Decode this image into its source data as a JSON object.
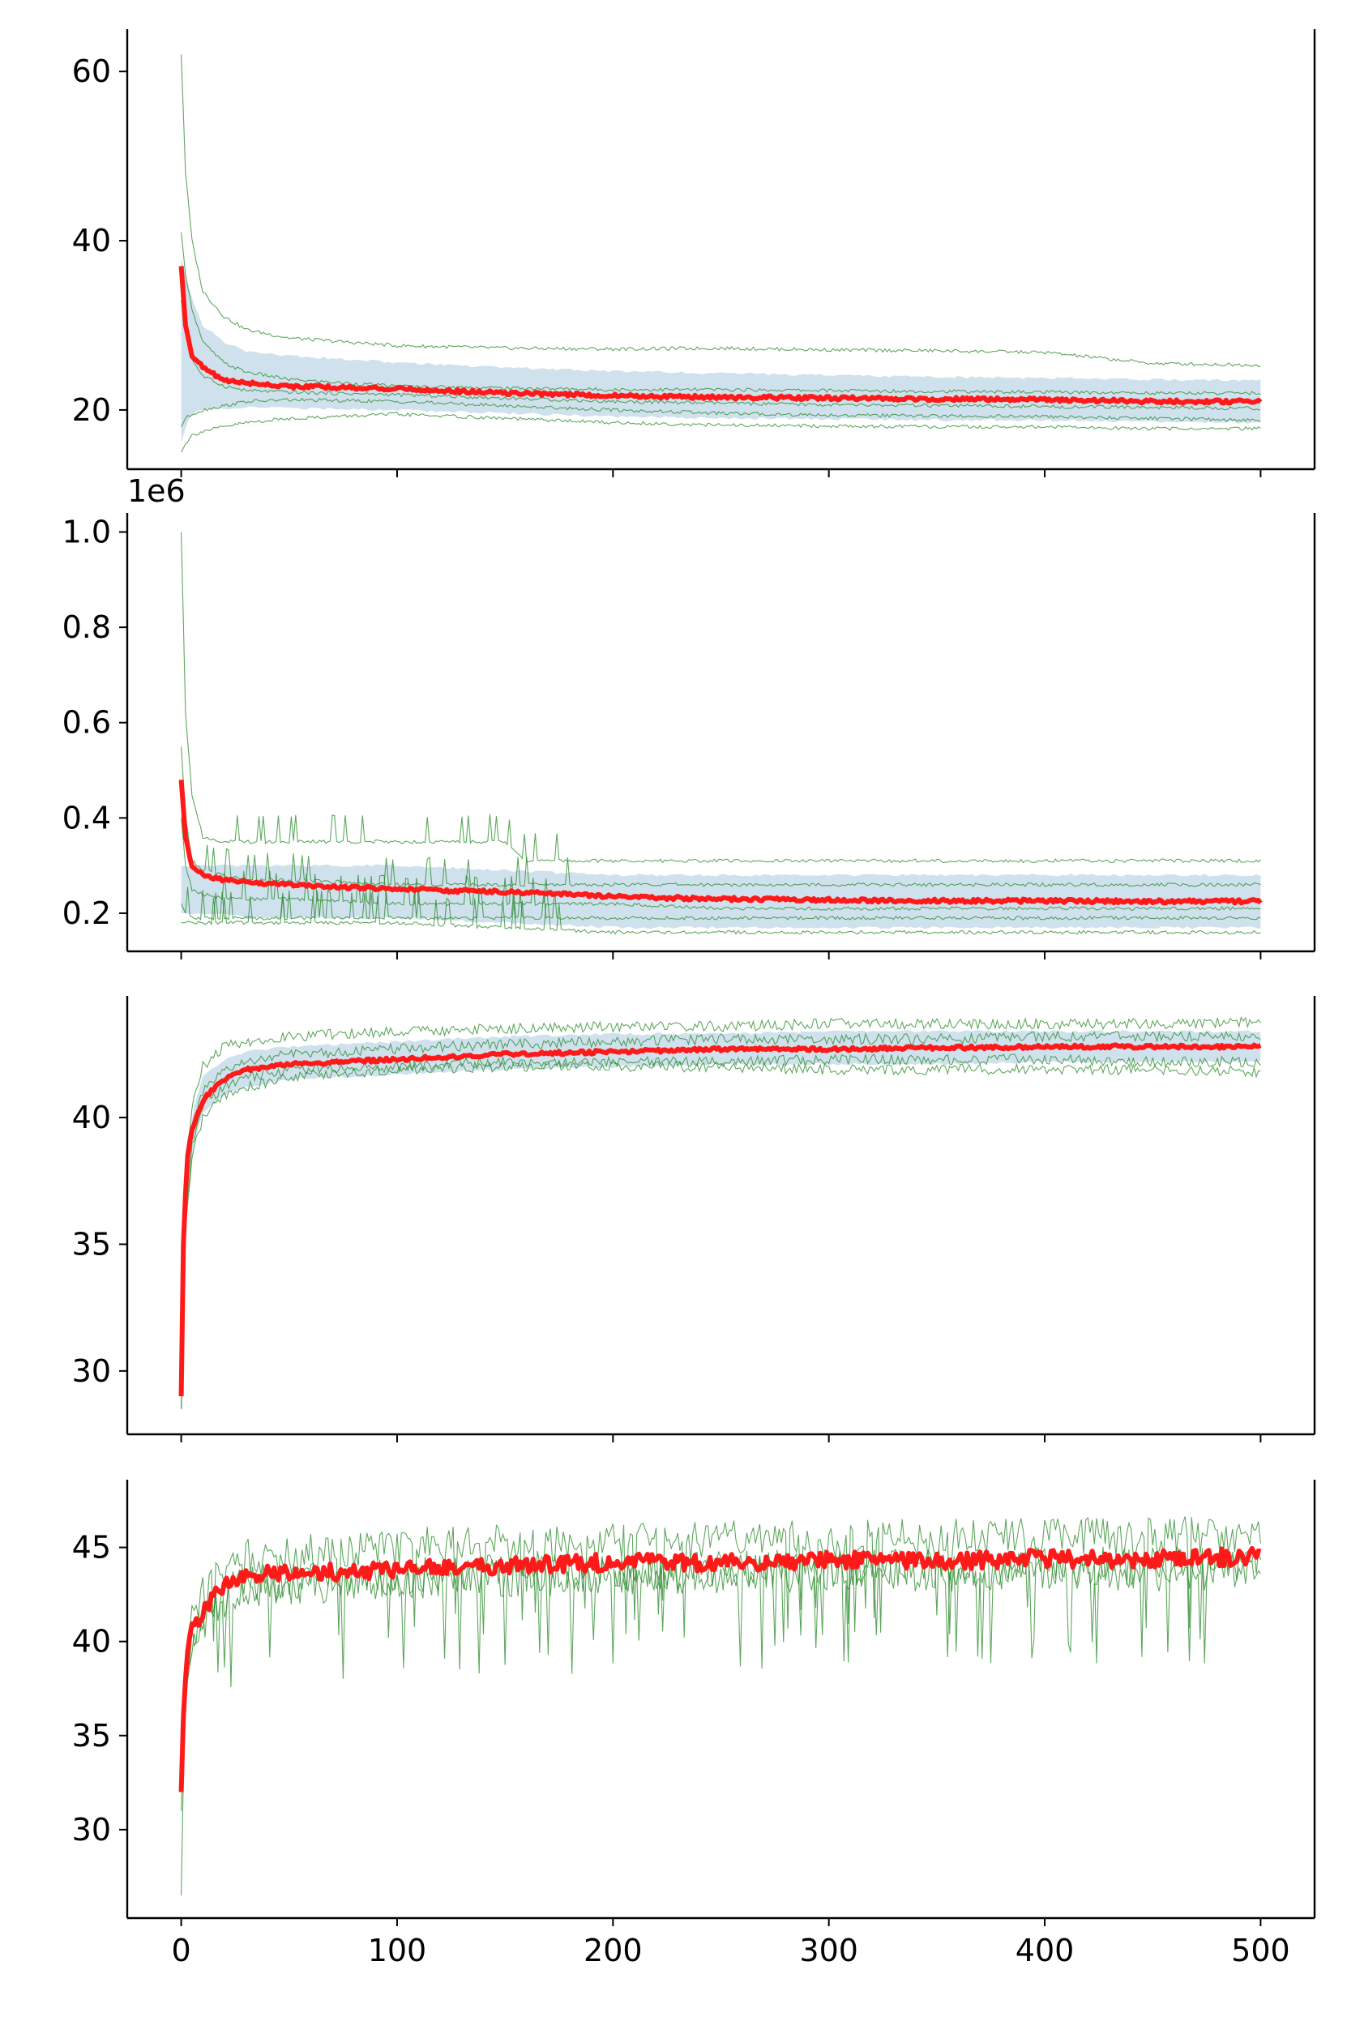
{
  "chart_data": [
    {
      "type": "line",
      "x_ticks": [
        0,
        100,
        200,
        300,
        400,
        500
      ],
      "y_ticks": [
        20,
        40,
        60
      ],
      "ylim": [
        13,
        65
      ],
      "xlim": [
        -25,
        525
      ],
      "grid": false,
      "series": [
        {
          "role": "mean",
          "color": "#ff1a1a",
          "x": [
            0,
            2,
            5,
            10,
            20,
            30,
            50,
            100,
            150,
            200,
            250,
            300,
            350,
            400,
            450,
            500
          ],
          "values": [
            37,
            30,
            26.5,
            25,
            23.5,
            23.2,
            22.8,
            22.5,
            22.0,
            21.7,
            21.5,
            21.4,
            21.3,
            21.2,
            21.0,
            21.0
          ]
        },
        {
          "role": "std_band",
          "color": "#a9c8e0",
          "x": [
            0,
            2,
            5,
            10,
            20,
            30,
            50,
            100,
            150,
            200,
            250,
            300,
            350,
            400,
            450,
            500
          ],
          "upper": [
            38,
            36,
            33,
            30,
            28,
            27,
            26.4,
            25.6,
            25,
            24.6,
            24.3,
            24.1,
            23.9,
            23.8,
            23.6,
            23.5
          ],
          "lower": [
            16,
            18,
            19.5,
            20,
            20.2,
            20.3,
            20.2,
            20.0,
            19.6,
            19.2,
            19.0,
            18.9,
            18.8,
            18.8,
            18.6,
            18.5
          ]
        },
        {
          "role": "run",
          "color": "#2a8a2a",
          "x": [
            0,
            2,
            5,
            10,
            20,
            30,
            50,
            100,
            150,
            200,
            250,
            300,
            350,
            400,
            450,
            500
          ],
          "values": [
            62,
            48,
            40,
            34,
            31,
            29.5,
            28.5,
            27.6,
            27.3,
            27.2,
            27.3,
            27.1,
            27.0,
            26.8,
            25.5,
            25.3
          ]
        },
        {
          "role": "run",
          "color": "#2a8a2a",
          "x": [
            0,
            2,
            5,
            10,
            20,
            30,
            50,
            100,
            150,
            200,
            250,
            300,
            350,
            400,
            450,
            500
          ],
          "values": [
            41,
            36,
            32,
            28,
            25.5,
            24.5,
            23.6,
            22.8,
            22.6,
            22.4,
            22.4,
            22.3,
            22.2,
            22.1,
            22.0,
            22.0
          ]
        },
        {
          "role": "run",
          "color": "#2a8a2a",
          "x": [
            0,
            2,
            5,
            10,
            20,
            30,
            50,
            100,
            150,
            200,
            250,
            300,
            350,
            400,
            450,
            500
          ],
          "values": [
            33,
            29,
            26,
            24,
            22.8,
            22.3,
            22.1,
            21.8,
            21.4,
            21.0,
            20.8,
            20.6,
            20.5,
            20.4,
            20.3,
            20.2
          ]
        },
        {
          "role": "run",
          "color": "#2a8a2a",
          "x": [
            0,
            2,
            5,
            10,
            20,
            30,
            50,
            100,
            150,
            200,
            250,
            300,
            350,
            400,
            450,
            500
          ],
          "values": [
            18,
            19,
            19.5,
            20,
            20.5,
            21,
            21.2,
            21.0,
            20.5,
            20.0,
            19.6,
            19.4,
            19.3,
            19.2,
            19.0,
            18.8
          ]
        },
        {
          "role": "run",
          "color": "#2a8a2a",
          "x": [
            0,
            2,
            5,
            10,
            20,
            30,
            50,
            100,
            150,
            200,
            250,
            300,
            350,
            400,
            450,
            500
          ],
          "values": [
            15,
            16,
            17,
            17.5,
            18,
            18.5,
            19,
            19.5,
            19.0,
            18.5,
            18.2,
            18.1,
            18.0,
            18.0,
            17.8,
            17.8
          ]
        }
      ]
    },
    {
      "type": "line",
      "x_ticks": [
        0,
        100,
        200,
        300,
        400,
        500
      ],
      "y_ticks": [
        0.2,
        0.4,
        0.6,
        0.8,
        1.0
      ],
      "y_tick_labels": [
        "0.2",
        "0.4",
        "0.6",
        "0.8",
        "1.0"
      ],
      "y_offset_label": "1e6",
      "ylim": [
        0.12,
        1.04
      ],
      "xlim": [
        -25,
        525
      ],
      "grid": false,
      "series": [
        {
          "role": "mean",
          "color": "#ff1a1a",
          "x": [
            0,
            2,
            5,
            10,
            20,
            30,
            50,
            100,
            150,
            200,
            250,
            300,
            350,
            400,
            450,
            500
          ],
          "values": [
            0.48,
            0.36,
            0.3,
            0.28,
            0.27,
            0.265,
            0.26,
            0.25,
            0.245,
            0.235,
            0.23,
            0.228,
            0.226,
            0.226,
            0.225,
            0.225
          ]
        },
        {
          "role": "std_band",
          "color": "#a9c8e0",
          "x": [
            0,
            2,
            5,
            10,
            20,
            30,
            50,
            100,
            150,
            200,
            250,
            300,
            350,
            400,
            450,
            500
          ],
          "upper": [
            0.3,
            0.3,
            0.3,
            0.3,
            0.3,
            0.3,
            0.3,
            0.3,
            0.29,
            0.28,
            0.28,
            0.28,
            0.28,
            0.28,
            0.28,
            0.28
          ],
          "lower": [
            0.2,
            0.2,
            0.2,
            0.2,
            0.2,
            0.19,
            0.19,
            0.19,
            0.18,
            0.17,
            0.17,
            0.17,
            0.17,
            0.17,
            0.17,
            0.17
          ]
        },
        {
          "role": "run",
          "color": "#2a8a2a",
          "x": [
            0,
            2,
            5,
            10,
            20,
            30,
            50,
            100,
            150,
            160,
            170,
            180,
            250,
            300,
            400,
            500
          ],
          "values": [
            1.0,
            0.62,
            0.45,
            0.36,
            0.35,
            0.35,
            0.35,
            0.35,
            0.35,
            0.31,
            0.31,
            0.31,
            0.31,
            0.31,
            0.31,
            0.31
          ]
        },
        {
          "role": "run",
          "color": "#2a8a2a",
          "x": [
            0,
            2,
            5,
            10,
            20,
            30,
            50,
            100,
            150,
            200,
            250,
            300,
            350,
            400,
            450,
            500
          ],
          "values": [
            0.55,
            0.4,
            0.31,
            0.29,
            0.28,
            0.27,
            0.27,
            0.26,
            0.26,
            0.26,
            0.26,
            0.26,
            0.26,
            0.26,
            0.26,
            0.26
          ]
        },
        {
          "role": "run",
          "color": "#2a8a2a",
          "x": [
            0,
            2,
            5,
            10,
            20,
            30,
            50,
            100,
            150,
            200,
            250,
            300,
            350,
            400,
            450,
            500
          ],
          "values": [
            0.4,
            0.3,
            0.25,
            0.24,
            0.23,
            0.23,
            0.23,
            0.22,
            0.22,
            0.22,
            0.21,
            0.21,
            0.21,
            0.21,
            0.21,
            0.21
          ]
        },
        {
          "role": "run",
          "color": "#2a8a2a",
          "x": [
            0,
            2,
            5,
            10,
            20,
            30,
            50,
            100,
            150,
            200,
            250,
            300,
            350,
            400,
            450,
            500
          ],
          "values": [
            0.22,
            0.2,
            0.19,
            0.19,
            0.19,
            0.19,
            0.19,
            0.19,
            0.19,
            0.19,
            0.19,
            0.19,
            0.19,
            0.19,
            0.19,
            0.19
          ]
        },
        {
          "role": "run",
          "color": "#2a8a2a",
          "x": [
            0,
            2,
            5,
            10,
            20,
            30,
            50,
            100,
            150,
            200,
            250,
            300,
            350,
            400,
            450,
            500
          ],
          "values": [
            0.18,
            0.18,
            0.18,
            0.18,
            0.18,
            0.18,
            0.18,
            0.18,
            0.17,
            0.16,
            0.16,
            0.16,
            0.16,
            0.16,
            0.16,
            0.16
          ]
        }
      ]
    },
    {
      "type": "line",
      "x_ticks": [
        0,
        100,
        200,
        300,
        400,
        500
      ],
      "y_ticks": [
        30,
        35,
        40
      ],
      "ylim": [
        27.5,
        44.8
      ],
      "xlim": [
        -25,
        525
      ],
      "grid": false,
      "series": [
        {
          "role": "mean",
          "color": "#ff1a1a",
          "x": [
            0,
            1,
            2,
            3,
            5,
            8,
            12,
            20,
            30,
            50,
            100,
            150,
            200,
            250,
            300,
            350,
            400,
            450,
            500
          ],
          "values": [
            29,
            35,
            37,
            38.5,
            39.5,
            40.3,
            40.9,
            41.5,
            41.9,
            42.1,
            42.3,
            42.5,
            42.6,
            42.7,
            42.7,
            42.75,
            42.8,
            42.8,
            42.8
          ]
        },
        {
          "role": "std_band",
          "color": "#a9c8e0",
          "x": [
            0,
            2,
            5,
            10,
            20,
            30,
            50,
            100,
            150,
            200,
            250,
            300,
            350,
            400,
            450,
            500
          ],
          "upper": [
            29.5,
            37.8,
            40.2,
            41.6,
            42.3,
            42.6,
            42.8,
            43.0,
            43.2,
            43.3,
            43.3,
            43.4,
            43.4,
            43.4,
            43.4,
            43.4
          ],
          "lower": [
            28.5,
            36.2,
            38.8,
            40.2,
            40.9,
            41.2,
            41.5,
            41.7,
            41.9,
            42.0,
            42.1,
            42.1,
            42.1,
            42.2,
            42.2,
            42.2
          ]
        },
        {
          "role": "run",
          "color": "#2a8a2a",
          "x": [
            0,
            2,
            5,
            10,
            20,
            30,
            50,
            100,
            150,
            200,
            250,
            300,
            350,
            400,
            450,
            500
          ],
          "values": [
            29,
            38,
            40.5,
            42.0,
            42.8,
            43.0,
            43.2,
            43.4,
            43.5,
            43.6,
            43.6,
            43.7,
            43.7,
            43.7,
            43.7,
            43.8
          ]
        },
        {
          "role": "run",
          "color": "#2a8a2a",
          "x": [
            0,
            2,
            5,
            10,
            20,
            30,
            50,
            100,
            150,
            200,
            250,
            300,
            350,
            400,
            450,
            500
          ],
          "values": [
            28.5,
            36,
            38.8,
            40.5,
            41.2,
            41.6,
            41.9,
            42.0,
            42.2,
            42.2,
            42.2,
            42.3,
            42.3,
            42.3,
            42.2,
            42.2
          ]
        },
        {
          "role": "run",
          "color": "#2a8a2a",
          "x": [
            0,
            2,
            5,
            10,
            20,
            30,
            50,
            100,
            150,
            200,
            250,
            300,
            350,
            400,
            450,
            500
          ],
          "values": [
            29,
            37,
            39.5,
            41.0,
            41.8,
            42.2,
            42.5,
            42.7,
            42.9,
            43.0,
            43.1,
            43.1,
            43.1,
            43.2,
            43.2,
            43.2
          ]
        },
        {
          "role": "run",
          "color": "#2a8a2a",
          "x": [
            0,
            2,
            5,
            10,
            20,
            30,
            50,
            100,
            150,
            200,
            250,
            300,
            350,
            400,
            450,
            500
          ],
          "values": [
            28.5,
            35.5,
            38.5,
            40.0,
            40.8,
            41.2,
            41.6,
            41.9,
            42.0,
            42.0,
            42.0,
            41.9,
            41.9,
            41.9,
            41.9,
            41.8
          ]
        }
      ]
    },
    {
      "type": "line",
      "x_ticks": [
        0,
        100,
        200,
        300,
        400,
        500
      ],
      "x_tick_labels": [
        "0",
        "100",
        "200",
        "300",
        "400",
        "500"
      ],
      "y_ticks": [
        30,
        35,
        40,
        45
      ],
      "ylim": [
        25.3,
        48.6
      ],
      "xlim": [
        -25,
        525
      ],
      "grid": false,
      "series": [
        {
          "role": "mean",
          "color": "#ff1a1a",
          "x": [
            0,
            1,
            2,
            3,
            5,
            8,
            12,
            20,
            30,
            50,
            100,
            150,
            200,
            250,
            300,
            350,
            400,
            450,
            500
          ],
          "values": [
            32,
            36,
            38,
            39.5,
            40.5,
            41.3,
            42.0,
            43.0,
            43.5,
            43.6,
            43.8,
            44.0,
            44.2,
            44.2,
            44.3,
            44.3,
            44.4,
            44.4,
            44.5
          ]
        },
        {
          "role": "run",
          "color": "#2a8a2a",
          "x": [
            0,
            1,
            2,
            3,
            5,
            8,
            12,
            20,
            30,
            50,
            100,
            150,
            200,
            250,
            300,
            350,
            400,
            450,
            500
          ],
          "values": [
            26.5,
            33,
            37,
            39,
            40,
            40.5,
            41.5,
            42.5,
            43.0,
            43.2,
            43.4,
            43.6,
            43.7,
            43.8,
            43.9,
            43.9,
            44.0,
            44.0,
            44.0
          ]
        },
        {
          "role": "run",
          "color": "#2a8a2a",
          "x": [
            0,
            1,
            2,
            3,
            5,
            8,
            12,
            20,
            30,
            50,
            100,
            150,
            200,
            250,
            300,
            350,
            400,
            450,
            500
          ],
          "values": [
            33,
            37,
            39,
            40.5,
            41.5,
            42.2,
            43.0,
            44.0,
            44.5,
            44.7,
            45.0,
            45.2,
            45.3,
            45.4,
            45.4,
            45.5,
            45.5,
            45.6,
            45.6
          ]
        },
        {
          "role": "run",
          "color": "#2a8a2a",
          "x": [
            0,
            1,
            2,
            3,
            5,
            8,
            12,
            20,
            30,
            50,
            100,
            150,
            200,
            250,
            300,
            350,
            400,
            450,
            500
          ],
          "values": [
            31,
            35,
            37.5,
            39,
            40.0,
            40.8,
            41.5,
            42.3,
            42.8,
            43.0,
            43.2,
            43.4,
            43.5,
            43.6,
            43.6,
            43.7,
            43.7,
            43.7,
            43.8
          ]
        }
      ]
    }
  ]
}
